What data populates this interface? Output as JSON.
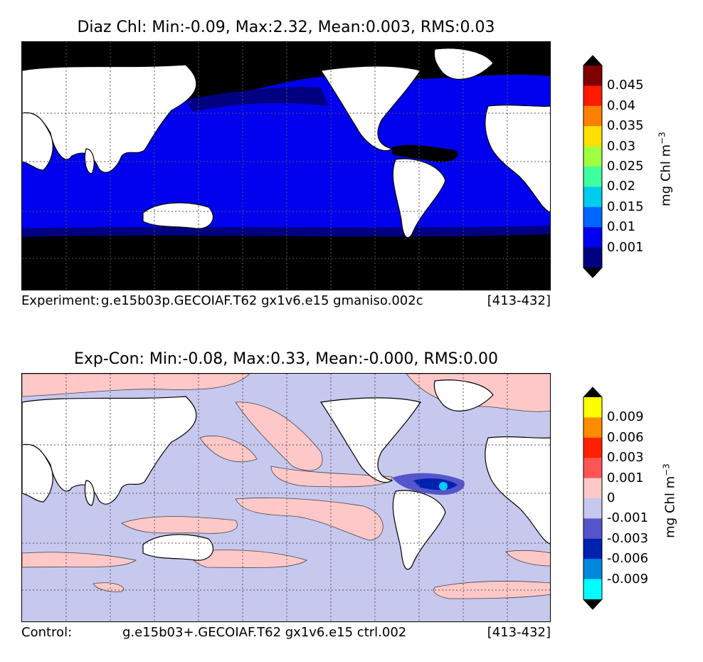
{
  "top": {
    "title": "Diaz Chl: Min:-0.09, Max:2.32, Mean:0.003, RMS:0.03",
    "footer_label": "Experiment:",
    "footer_run": "g.e15b03p.GECOIAF.T62 gx1v6.e15 gmaniso.002c",
    "footer_range": "[413-432]",
    "units": "mg Chl m",
    "units_exp": "−3",
    "colorbar": {
      "ticks": [
        "0.045",
        "0.04",
        "0.035",
        "0.03",
        "0.025",
        "0.02",
        "0.015",
        "0.01",
        "0.001"
      ],
      "colors_top_to_bottom": [
        "#800000",
        "#ff1a00",
        "#ff8000",
        "#ffe000",
        "#a0ff40",
        "#40ffa0",
        "#00ccee",
        "#0066ff",
        "#0000ee",
        "#000080"
      ],
      "extend_max_color": "#000000",
      "extend_min_color": "#000000"
    },
    "map_colors": {
      "ocean": "#0000ee",
      "deep_ocean": "#000080",
      "polar": "#000000",
      "land": "#ffffff"
    }
  },
  "bottom": {
    "title": "Exp-Con: Min:-0.08, Max:0.33, Mean:-0.000, RMS:0.00",
    "footer_label": "Control:",
    "footer_run": "g.e15b03+.GECOIAF.T62 gx1v6.e15 ctrl.002",
    "footer_range": "[413-432]",
    "units": "mg Chl m",
    "units_exp": "−3",
    "colorbar": {
      "ticks": [
        "0.009",
        "0.006",
        "0.003",
        "0.001",
        "0",
        "-0.001",
        "-0.003",
        "-0.006",
        "-0.009"
      ],
      "colors_top_to_bottom": [
        "#ffff00",
        "#ff8c00",
        "#ff2000",
        "#ff5555",
        "#ffc8c8",
        "#c6c8ee",
        "#5555cc",
        "#0020b0",
        "#0088dd",
        "#00ffff"
      ],
      "extend_max_color": "#000000",
      "extend_min_color": "#000000"
    },
    "map_colors": {
      "background": "#c6c8ee",
      "positive": "#ffc8c8",
      "land": "#ffffff"
    }
  }
}
